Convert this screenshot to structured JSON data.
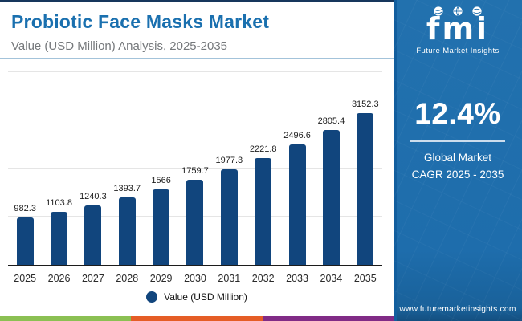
{
  "header": {
    "title": "Probiotic Face Masks Market",
    "subtitle": "Value (USD Million) Analysis, 2025-2035"
  },
  "chart_data": {
    "type": "bar",
    "title": "Probiotic Face Masks Market",
    "subtitle": "Value (USD Million) Analysis, 2025-2035",
    "categories": [
      "2025",
      "2026",
      "2027",
      "2028",
      "2029",
      "2030",
      "2031",
      "2032",
      "2033",
      "2034",
      "2035"
    ],
    "values": [
      982.3,
      1103.8,
      1240.3,
      1393.7,
      1566,
      1759.7,
      1977.3,
      2221.8,
      2496.6,
      2805.4,
      3152.3
    ],
    "xlabel": "",
    "ylabel": "Value (USD Million)",
    "ylim": [
      0,
      4000
    ],
    "grid": true,
    "gridline_step": 1000,
    "bar_color": "#11457d",
    "legend": [
      {
        "label": "Value (USD Million)",
        "color": "#11457d"
      }
    ],
    "legend_position": "bottom"
  },
  "legend": {
    "label": "Value (USD Million)"
  },
  "sidebar": {
    "logo_text": "fmi",
    "logo_tagline": "Future Market Insights",
    "cagr_value": "12.4%",
    "cagr_line1": "Global Market",
    "cagr_line2": "CAGR 2025 - 2035",
    "website": "www.futuremarketinsights.com"
  },
  "colors": {
    "title_blue": "#1a70af",
    "bar_navy": "#11457d",
    "sidebar_blue": "#1e6dac",
    "footer_stripe": [
      "#8bc053",
      "#e55d26",
      "#812b86"
    ]
  }
}
